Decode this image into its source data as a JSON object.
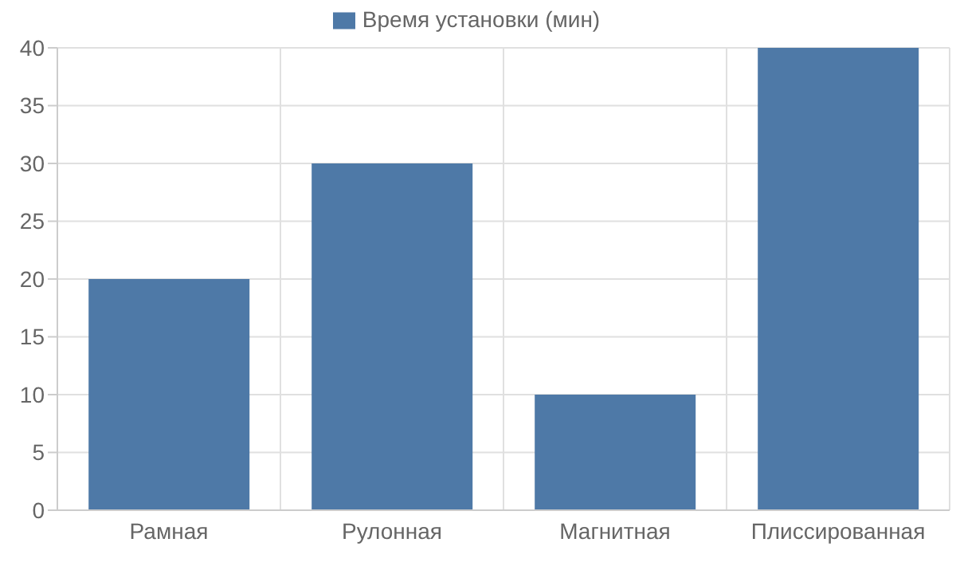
{
  "chart_data": {
    "type": "bar",
    "categories": [
      "Рамная",
      "Рулонная",
      "Магнитная",
      "Плиссированная"
    ],
    "series": [
      {
        "name": "Время установки (мин)",
        "color": "#4e79a7",
        "values": [
          20,
          30,
          10,
          40
        ]
      }
    ],
    "ylim": [
      0,
      40
    ],
    "yticks": [
      0,
      5,
      10,
      15,
      20,
      25,
      30,
      35,
      40
    ],
    "grid": true,
    "legend": "top"
  }
}
